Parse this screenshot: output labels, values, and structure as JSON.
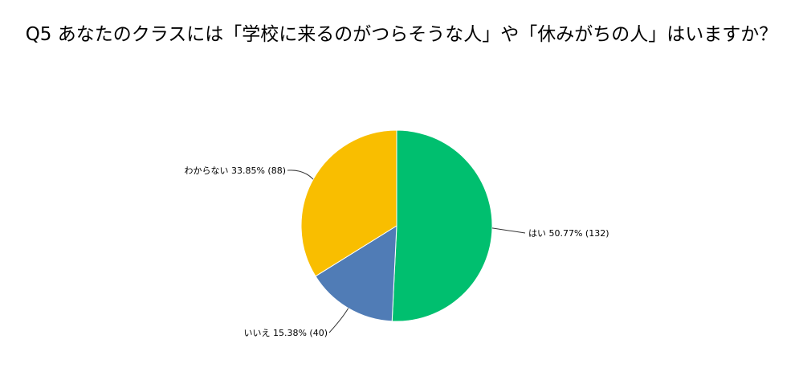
{
  "chart_data": {
    "type": "pie",
    "title": "Q5 あなたのクラスには「学校に来るのがつらそうな人」や「休みがちの人」はいますか？",
    "slices": [
      {
        "label": "はい",
        "percent": 50.77,
        "count": 132,
        "color": "#00bf6f",
        "display": "はい 50.77% (132)"
      },
      {
        "label": "いいえ",
        "percent": 15.38,
        "count": 40,
        "color": "#507cb6",
        "display": "いいえ 15.38% (40)"
      },
      {
        "label": "わからない",
        "percent": 33.85,
        "count": 88,
        "color": "#f9be00",
        "display": "わからない 33.85% (88)"
      }
    ],
    "start": "12 o'clock",
    "direction": "clockwise",
    "legend": "none"
  }
}
